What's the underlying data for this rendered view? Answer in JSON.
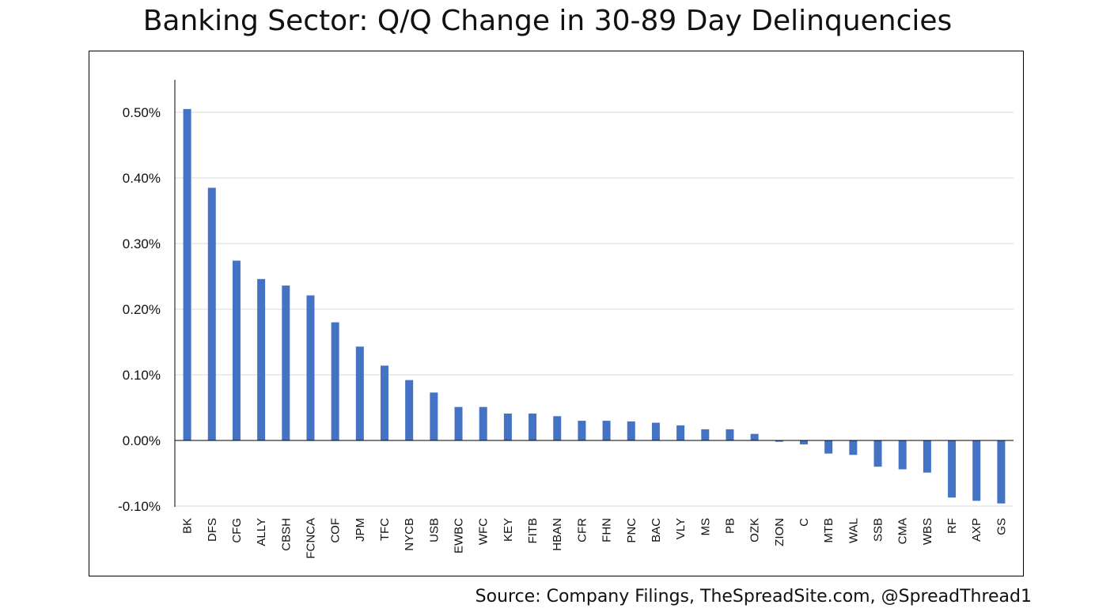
{
  "title": "Banking Sector: Q/Q Change in 30-89 Day Delinquencies",
  "source": "Source: Company Filings, TheSpreadSite.com, @SpreadThread1",
  "colors": {
    "bar": "#4472C4",
    "grid": "#d9d9d9",
    "axis": "#000000"
  },
  "chart_data": {
    "type": "bar",
    "title": "Banking Sector: Q/Q Change in 30-89 Day Delinquencies",
    "xlabel": "",
    "ylabel": "",
    "ylim": [
      -0.1,
      0.55
    ],
    "yticks": [
      0.5,
      0.4,
      0.3,
      0.2,
      0.1,
      0.0,
      -0.1
    ],
    "ytick_labels": [
      "0.50%",
      "0.40%",
      "0.30%",
      "0.20%",
      "0.10%",
      "0.00%",
      "-0.10%"
    ],
    "grid": true,
    "legend": "none",
    "categories": [
      "BK",
      "DFS",
      "CFG",
      "ALLY",
      "CBSH",
      "FCNCA",
      "COF",
      "JPM",
      "TFC",
      "NYCB",
      "USB",
      "EWBC",
      "WFC",
      "KEY",
      "FITB",
      "HBAN",
      "CFR",
      "FHN",
      "PNC",
      "BAC",
      "VLY",
      "MS",
      "PB",
      "OZK",
      "ZION",
      "C",
      "MTB",
      "WAL",
      "SSB",
      "CMA",
      "WBS",
      "RF",
      "AXP",
      "GS"
    ],
    "values": [
      0.505,
      0.385,
      0.274,
      0.246,
      0.236,
      0.221,
      0.18,
      0.143,
      0.114,
      0.092,
      0.073,
      0.051,
      0.051,
      0.041,
      0.041,
      0.037,
      0.03,
      0.03,
      0.029,
      0.027,
      0.023,
      0.017,
      0.017,
      0.01,
      -0.002,
      -0.006,
      -0.02,
      -0.022,
      -0.04,
      -0.044,
      -0.049,
      -0.087,
      -0.092,
      -0.096
    ]
  }
}
